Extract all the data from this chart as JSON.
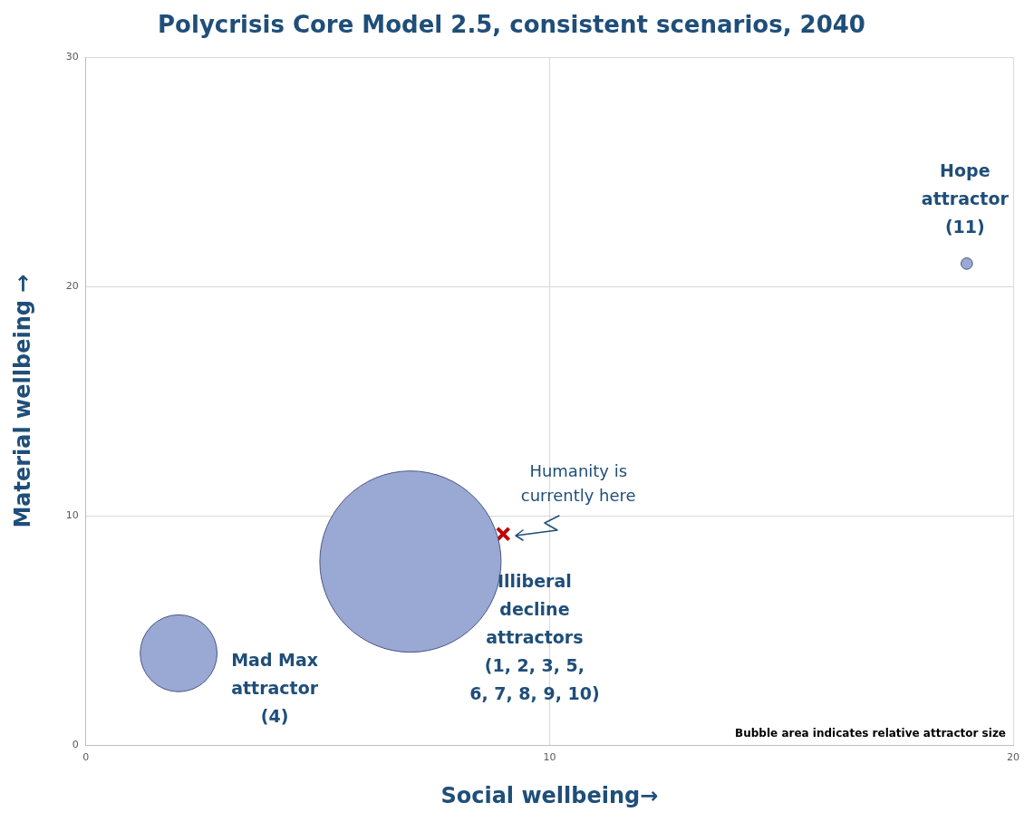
{
  "chart_data": {
    "type": "bubble",
    "title": "Polycrisis Core Model 2.5, consistent scenarios, 2040",
    "xlabel": "Social wellbeing→",
    "ylabel": "Material wellbeing →",
    "xlim": [
      0,
      20
    ],
    "xticks": [
      0,
      10,
      20
    ],
    "ylim": [
      0,
      30
    ],
    "yticks": [
      0,
      10,
      20,
      30
    ],
    "grid": true,
    "legend": false,
    "series": [
      {
        "type": "bubble",
        "color": "#9aa8d4",
        "x": [
          2,
          7,
          19
        ],
        "values": [
          4,
          8,
          21
        ],
        "sizes": [
          0.18,
          1,
          0.004
        ]
      },
      {
        "type": "scatter",
        "color": "#c00000",
        "marker": "cross",
        "x": [
          9
        ],
        "values": [
          9.2
        ]
      }
    ],
    "annotations": [
      "Mad Max\nattractor\n(4)",
      "Illiberal\ndecline\nattractors\n(1, 2, 3, 5,\n6, 7, 8, 9, 10)",
      {
        "text": "Hope\nattractor\n(11)",
        "x": 19,
        "y": 21
      },
      {
        "text": "Humanity is\ncurrently here",
        "x": 9,
        "y": 9.2
      },
      "Bubble area indicates relative attractor size"
    ]
  }
}
